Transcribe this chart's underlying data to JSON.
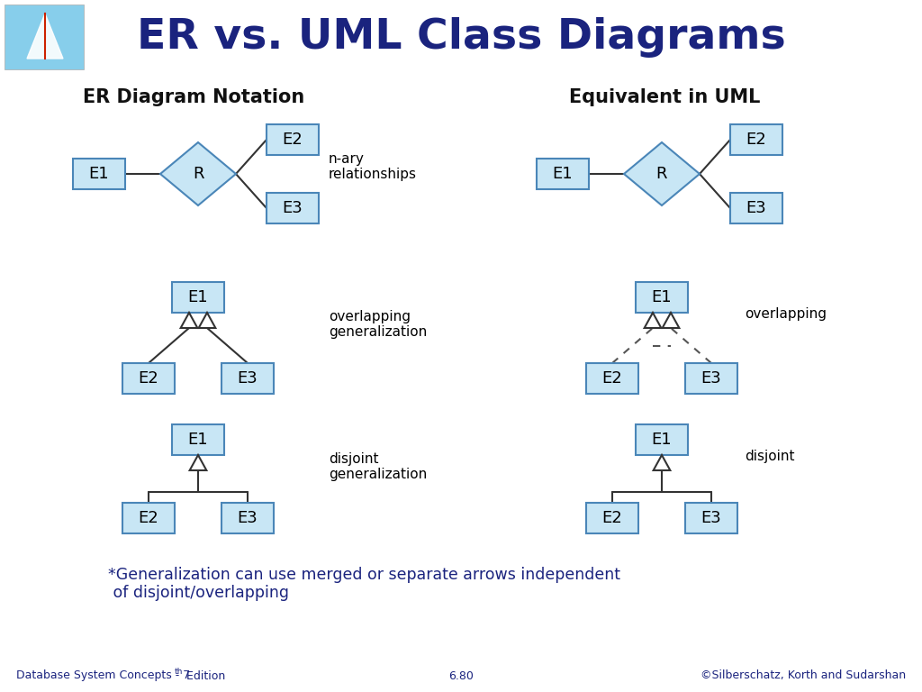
{
  "title": "ER vs. UML Class Diagrams",
  "title_color": "#1a237e",
  "bg_color": "#ffffff",
  "box_fill": "#c8e6f5",
  "box_edge": "#4a86b8",
  "left_header": "ER Diagram Notation",
  "right_header": "Equivalent in UML",
  "footer_left": "Database System Concepts - 7",
  "footer_left_super": "th",
  "footer_left2": " Edition",
  "footer_center": "6.80",
  "footer_right": "©Silberschatz, Korth and Sudarshan",
  "footer_color": "#1a237e",
  "note_line1": "*Generalization can use merged or separate arrows independent",
  "note_line2": " of disjoint/overlapping",
  "note_color": "#1a237e",
  "arrow_color": "#333333",
  "line_color": "#333333",
  "dashed_color": "#555555"
}
